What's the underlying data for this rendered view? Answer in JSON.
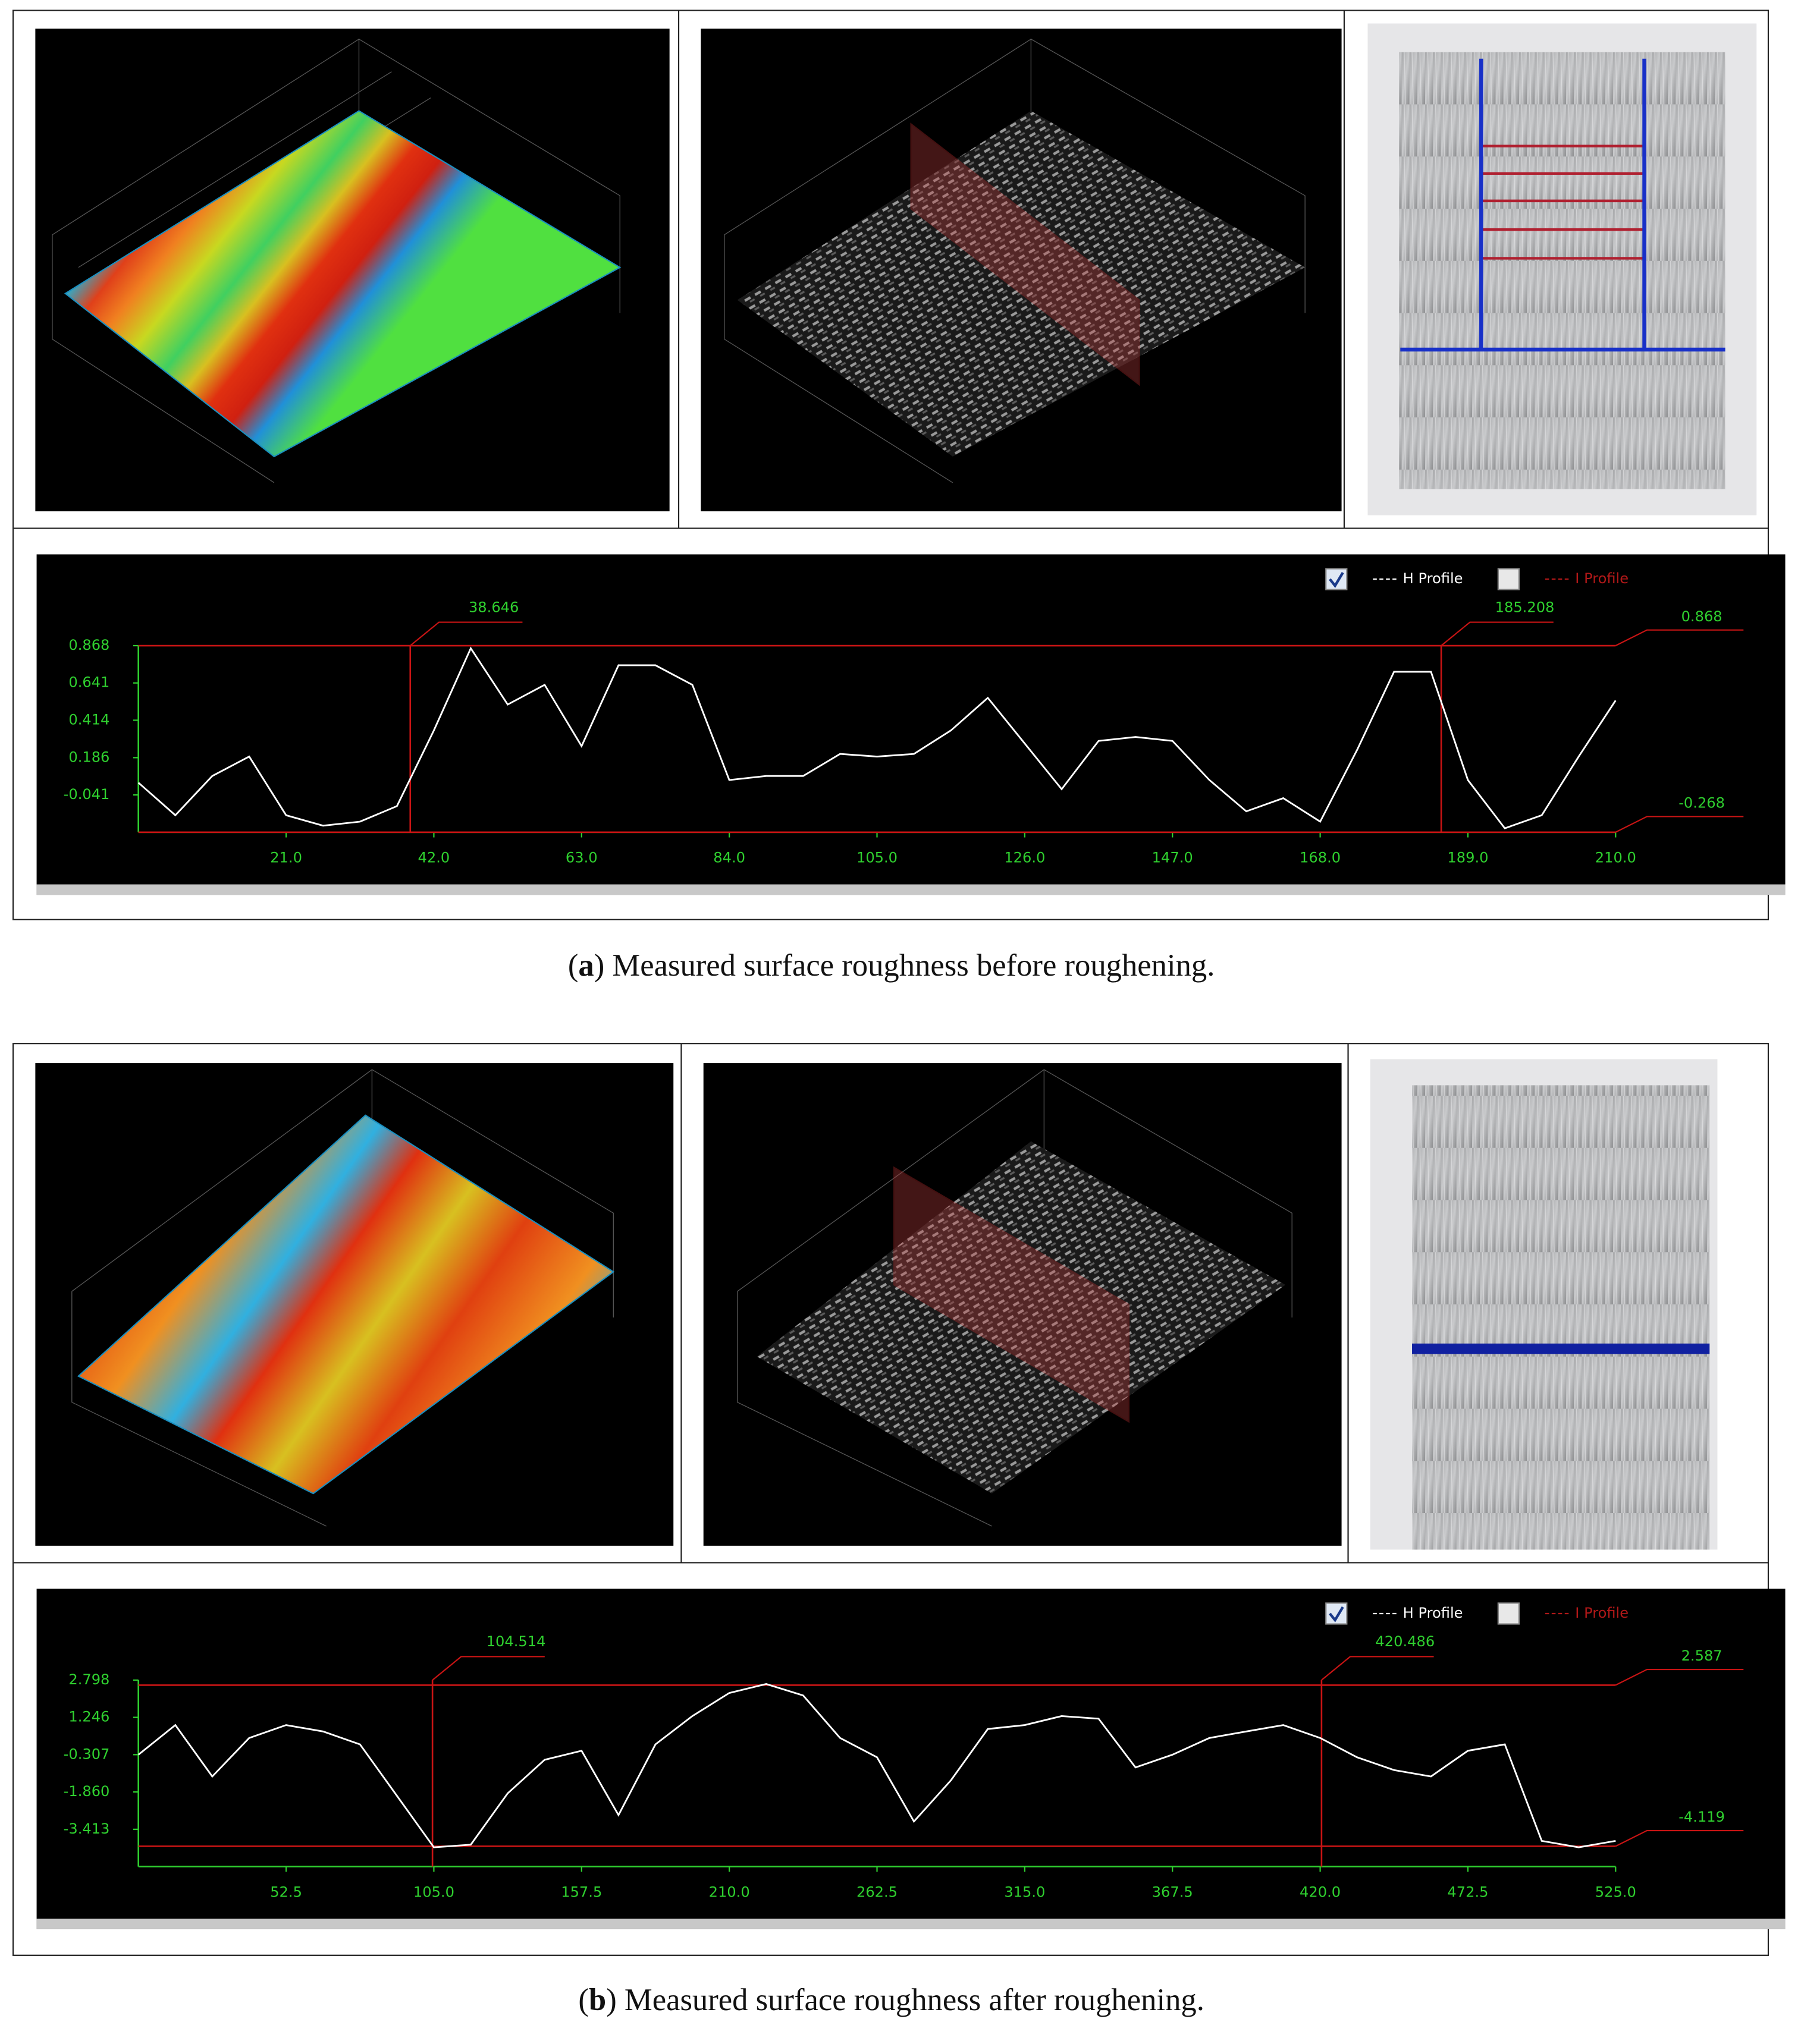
{
  "chart_data": [
    {
      "type": "line",
      "caption": {
        "open": "(",
        "label": "a",
        "text": ") Measured surface roughness before roughening."
      },
      "x": [
        0,
        5.25,
        10.5,
        15.75,
        21,
        26.25,
        31.5,
        36.75,
        42,
        47.25,
        52.5,
        57.75,
        63,
        68.25,
        73.5,
        78.75,
        84,
        89.25,
        94.5,
        99.75,
        105,
        110.25,
        115.5,
        120.75,
        126,
        131.25,
        136.5,
        141.75,
        147,
        152.25,
        157.5,
        162.75,
        168,
        173.25,
        178.5,
        183.75,
        189,
        194.25,
        199.5,
        204.75,
        210
      ],
      "series": [
        {
          "name": "H Profile",
          "color": "#ffffff",
          "checked": true,
          "values": [
            0.034,
            -0.165,
            0.074,
            0.193,
            -0.165,
            -0.228,
            -0.204,
            -0.109,
            0.352,
            0.852,
            0.51,
            0.63,
            0.256,
            0.749,
            0.749,
            0.63,
            0.05,
            0.074,
            0.074,
            0.209,
            0.193,
            0.209,
            0.352,
            0.55,
            0.272,
            -0.006,
            0.288,
            0.312,
            0.288,
            0.05,
            -0.141,
            -0.061,
            -0.204,
            0.233,
            0.709,
            0.709,
            0.05,
            -0.244,
            -0.165,
            0.193,
            0.534
          ]
        },
        {
          "name": "I Profile",
          "color": "#b01818",
          "checked": false
        }
      ],
      "xlim": [
        0,
        210
      ],
      "xticks": [
        {
          "value": 21,
          "label": "21.0"
        },
        {
          "value": 42,
          "label": "42.0"
        },
        {
          "value": 63,
          "label": "63.0"
        },
        {
          "value": 84,
          "label": "84.0"
        },
        {
          "value": 105,
          "label": "105.0"
        },
        {
          "value": 126,
          "label": "126.0"
        },
        {
          "value": 147,
          "label": "147.0"
        },
        {
          "value": 168,
          "label": "168.0"
        },
        {
          "value": 189,
          "label": "189.0"
        },
        {
          "value": 210,
          "label": "210.0"
        }
      ],
      "ylim": [
        -0.268,
        0.868
      ],
      "yticks": [
        0.868,
        0.641,
        0.414,
        0.186,
        -0.041
      ],
      "x_cursors": [
        38.646,
        185.208
      ],
      "y_cursors": [
        0.868,
        -0.268
      ],
      "cursor_color": "#c81414",
      "axis_color": "#2fd02f"
    },
    {
      "type": "line",
      "caption": {
        "open": "(",
        "label": "b",
        "text": ") Measured surface roughness after roughening."
      },
      "x": [
        0,
        13.125,
        26.25,
        39.375,
        52.5,
        65.625,
        78.75,
        91.875,
        105,
        118.125,
        131.25,
        144.375,
        157.5,
        170.625,
        183.75,
        196.875,
        210,
        223.125,
        236.25,
        249.375,
        262.5,
        275.625,
        288.75,
        301.875,
        315,
        328.125,
        341.25,
        354.375,
        367.5,
        380.625,
        393.75,
        406.875,
        420,
        433.125,
        446.25,
        459.375,
        472.5,
        485.625,
        498.75,
        511.875,
        525
      ],
      "series": [
        {
          "name": "H Profile",
          "color": "#ffffff",
          "checked": true,
          "values": [
            -0.307,
            0.924,
            -1.217,
            0.389,
            0.924,
            0.657,
            0.121,
            -2.02,
            -4.161,
            -4.054,
            -1.913,
            -0.521,
            -0.146,
            -2.823,
            0.121,
            1.299,
            2.263,
            2.637,
            2.156,
            0.389,
            -0.414,
            -3.09,
            -1.378,
            0.764,
            0.924,
            1.299,
            1.192,
            -0.842,
            -0.307,
            0.389,
            0.657,
            0.924,
            0.389,
            -0.414,
            -0.949,
            -1.217,
            -0.146,
            0.121,
            -3.894,
            -4.161,
            -3.894
          ]
        },
        {
          "name": "I Profile",
          "color": "#b01818",
          "checked": false
        }
      ],
      "xlim": [
        0,
        525
      ],
      "xticks": [
        52.5,
        {
          "value": 105,
          "label": "105.0"
        },
        157.5,
        {
          "value": 210,
          "label": "210.0"
        },
        262.5,
        {
          "value": 315,
          "label": "315.0"
        },
        367.5,
        {
          "value": 420,
          "label": "420.0"
        },
        472.5,
        {
          "value": 525,
          "label": "525.0"
        }
      ],
      "ylim": [
        -4.966,
        2.798
      ],
      "yticks": [
        2.798,
        1.246,
        -0.307,
        {
          "value": -1.86,
          "label": "-1.860"
        },
        -3.413
      ],
      "x_cursors": [
        104.514,
        420.486
      ],
      "y_cursors": [
        2.587,
        -4.119
      ],
      "cursor_color": "#c81414",
      "axis_color": "#2fd02f"
    }
  ]
}
